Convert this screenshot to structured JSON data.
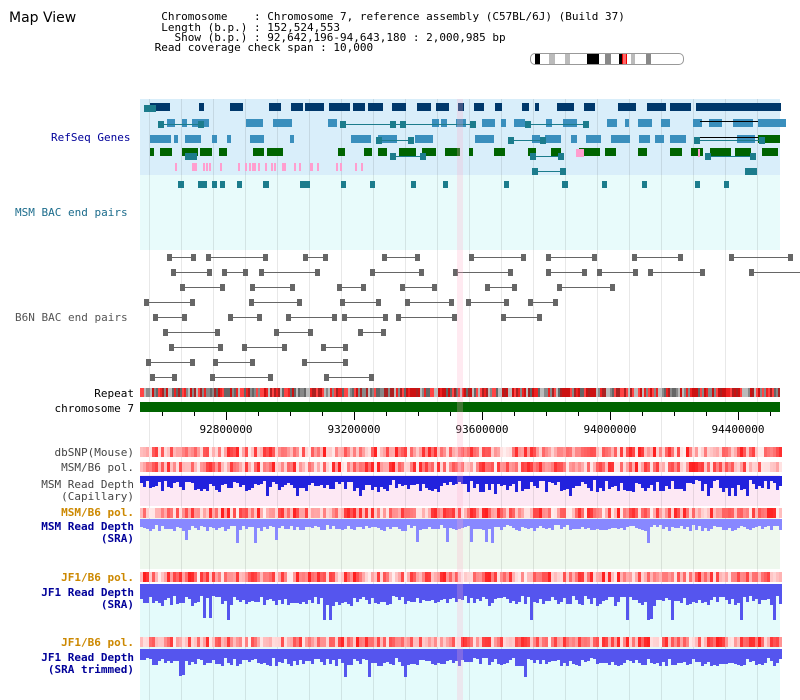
{
  "header": {
    "title": "Map View",
    "info_lines": [
      "  Chromosome    : Chromosome 7, reference assembly (C57BL/6J) (Build 37)",
      "  Length (b.p.) : 152,524,553",
      "    Show (b.p.) : 92,642,196-94,643,180 : 2,000,985 bp",
      " Read coverage check span : 10,000"
    ]
  },
  "tracks": {
    "refseq": "RefSeq Genes",
    "msm_bac": "MSM BAC end pairs",
    "b6n_bac": "B6N BAC end pairs",
    "repeat": "Repeat",
    "chromosome": "chromosome 7",
    "dbsnp": "dbSNP(Mouse)",
    "msm_b6_pol_1": "MSM/B6 pol.",
    "msm_depth_cap_1": "MSM Read Depth",
    "msm_depth_cap_2": "(Capillary)",
    "msm_b6_pol_2": "MSM/B6 pol.",
    "msm_depth_sra_1": "MSM Read Depth",
    "msm_depth_sra_2": "(SRA)",
    "jf1_pol_1": "JF1/B6 pol.",
    "jf1_depth_sra_1": "JF1 Read Depth",
    "jf1_depth_sra_2": "(SRA)",
    "jf1_pol_2": "JF1/B6 pol.",
    "jf1_depth_trim_1": "JF1 Read Depth",
    "jf1_depth_trim_2": "(SRA trimmed)"
  },
  "axis": {
    "ticks": [
      "92800000",
      "93200000",
      "93600000",
      "94000000",
      "94400000"
    ]
  },
  "colors": {
    "refseq_bg": "#d9eefa",
    "msm_bg": "#e8fbfb",
    "gene_dark": "#00386b",
    "gene_mid": "#3a8fbd",
    "gene_green": "#006400",
    "pink": "#ff9ecf",
    "teal": "#1c7c8c",
    "gray": "#666666",
    "chrom_green": "#006400",
    "depth_blue": "#2222dd",
    "depth_light": "#8888ff",
    "label_orange": "#cc8800",
    "label_blue": "#000099",
    "cap_bg": "#fde8f4",
    "sra_bg": "#eef8ee",
    "jf_bg": "#e4fbfb"
  }
}
